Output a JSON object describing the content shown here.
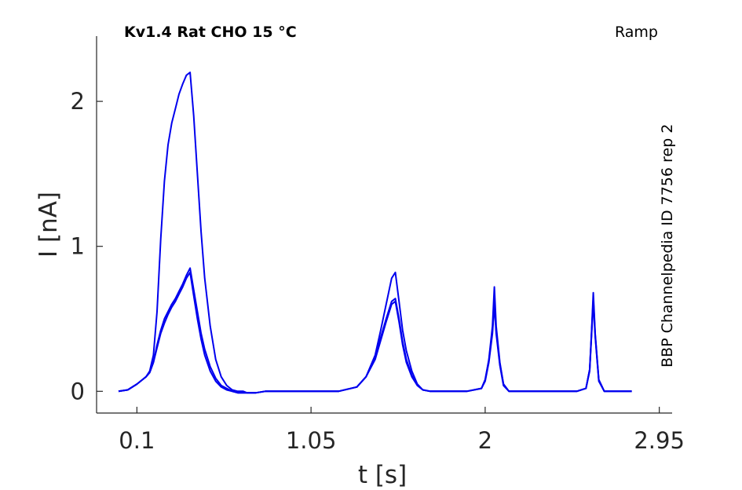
{
  "chart_data": {
    "type": "line",
    "title": "Kv1.4  Rat  CHO  15 °C",
    "protocol_label": "Ramp",
    "side_label": "BBP Channelpedia ID 7756 rep 2",
    "xlabel": "t [s]",
    "ylabel": "I [nA]",
    "x_tick_labels": [
      "0.1",
      "1.05",
      "2",
      "2.95"
    ],
    "x_tick_values": [
      0.1,
      1.05,
      2.0,
      2.95
    ],
    "y_tick_labels": [
      "0",
      "1",
      "2"
    ],
    "y_tick_values": [
      0,
      1,
      2
    ],
    "xlim": [
      -0.12,
      3.02
    ],
    "ylim": [
      -0.15,
      2.45
    ],
    "grid": false,
    "line_color": "#0000ee",
    "series": [
      {
        "x": [
          0.0,
          0.05,
          0.1,
          0.13,
          0.15,
          0.17,
          0.19,
          0.21,
          0.23,
          0.25,
          0.27,
          0.29,
          0.31,
          0.33,
          0.35,
          0.37,
          0.39,
          0.41,
          0.43,
          0.45,
          0.47,
          0.5,
          0.53,
          0.56,
          0.59,
          0.62,
          0.65,
          0.68,
          0.7,
          0.75,
          0.8,
          0.9,
          1.0,
          1.1,
          1.2,
          1.3,
          1.35,
          1.4,
          1.43,
          1.46,
          1.49,
          1.51,
          1.53,
          1.55,
          1.57,
          1.6,
          1.63,
          1.66,
          1.7,
          1.75,
          1.8,
          1.9,
          1.98,
          2.0,
          2.02,
          2.04,
          2.05,
          2.06,
          2.08,
          2.1,
          2.13,
          2.2,
          2.3,
          2.4,
          2.5,
          2.55,
          2.57,
          2.58,
          2.59,
          2.6,
          2.62,
          2.65,
          2.7,
          2.8
        ],
        "y": [
          0.0,
          0.01,
          0.05,
          0.08,
          0.1,
          0.14,
          0.25,
          0.55,
          1.05,
          1.45,
          1.7,
          1.85,
          1.95,
          2.05,
          2.12,
          2.18,
          2.2,
          1.9,
          1.5,
          1.1,
          0.78,
          0.45,
          0.22,
          0.1,
          0.04,
          0.01,
          0.0,
          0.0,
          -0.01,
          -0.01,
          0.0,
          0.0,
          0.0,
          0.0,
          0.0,
          0.03,
          0.1,
          0.25,
          0.42,
          0.6,
          0.78,
          0.82,
          0.62,
          0.42,
          0.28,
          0.14,
          0.05,
          0.01,
          0.0,
          0.0,
          0.0,
          0.0,
          0.02,
          0.08,
          0.22,
          0.45,
          0.72,
          0.45,
          0.2,
          0.05,
          0.0,
          0.0,
          0.0,
          0.0,
          0.0,
          0.02,
          0.15,
          0.4,
          0.68,
          0.4,
          0.08,
          0.0,
          0.0,
          0.0
        ]
      },
      {
        "x": [
          0.0,
          0.05,
          0.1,
          0.13,
          0.15,
          0.17,
          0.19,
          0.21,
          0.23,
          0.25,
          0.27,
          0.29,
          0.31,
          0.33,
          0.35,
          0.37,
          0.39,
          0.41,
          0.43,
          0.45,
          0.47,
          0.5,
          0.53,
          0.56,
          0.59,
          0.62,
          0.65,
          0.68,
          0.7,
          0.75,
          0.8,
          0.9,
          1.0,
          1.1,
          1.2,
          1.3,
          1.35,
          1.4,
          1.43,
          1.46,
          1.49,
          1.51,
          1.53,
          1.55,
          1.57,
          1.6,
          1.63,
          1.66,
          1.7,
          1.75,
          1.8,
          1.9,
          1.98,
          2.0,
          2.02,
          2.04,
          2.05,
          2.06,
          2.08,
          2.1,
          2.13,
          2.2,
          2.3,
          2.4,
          2.5,
          2.55,
          2.57,
          2.58,
          2.59,
          2.6,
          2.62,
          2.65,
          2.7,
          2.8
        ],
        "y": [
          0.0,
          0.01,
          0.05,
          0.08,
          0.1,
          0.13,
          0.2,
          0.3,
          0.4,
          0.47,
          0.53,
          0.58,
          0.62,
          0.67,
          0.72,
          0.78,
          0.82,
          0.66,
          0.5,
          0.36,
          0.25,
          0.14,
          0.07,
          0.03,
          0.01,
          0.0,
          -0.01,
          -0.01,
          -0.01,
          -0.01,
          0.0,
          0.0,
          0.0,
          0.0,
          0.0,
          0.03,
          0.1,
          0.22,
          0.35,
          0.48,
          0.6,
          0.62,
          0.48,
          0.32,
          0.2,
          0.1,
          0.04,
          0.01,
          0.0,
          0.0,
          0.0,
          0.0,
          0.02,
          0.07,
          0.2,
          0.4,
          0.6,
          0.4,
          0.18,
          0.04,
          0.0,
          0.0,
          0.0,
          0.0,
          0.0,
          0.02,
          0.14,
          0.38,
          0.62,
          0.38,
          0.07,
          0.0,
          0.0,
          0.0
        ]
      },
      {
        "x": [
          0.0,
          0.05,
          0.1,
          0.13,
          0.15,
          0.17,
          0.19,
          0.21,
          0.23,
          0.25,
          0.27,
          0.29,
          0.31,
          0.33,
          0.35,
          0.37,
          0.39,
          0.41,
          0.43,
          0.45,
          0.47,
          0.5,
          0.53,
          0.56,
          0.59,
          0.62,
          0.65,
          0.68,
          0.7,
          0.75,
          0.8,
          0.9,
          1.0,
          1.1,
          1.2,
          1.3,
          1.35,
          1.4,
          1.43,
          1.46,
          1.49,
          1.51,
          1.53,
          1.55,
          1.57,
          1.6,
          1.63,
          1.66,
          1.7,
          1.75,
          1.8,
          1.9,
          1.98,
          2.0,
          2.02,
          2.04,
          2.05,
          2.06,
          2.08,
          2.1,
          2.13,
          2.2,
          2.3,
          2.4,
          2.5,
          2.55,
          2.57,
          2.58,
          2.59,
          2.6,
          2.62,
          2.65,
          2.7,
          2.8
        ],
        "y": [
          0.0,
          0.01,
          0.05,
          0.08,
          0.1,
          0.13,
          0.2,
          0.32,
          0.42,
          0.5,
          0.55,
          0.6,
          0.64,
          0.69,
          0.74,
          0.8,
          0.85,
          0.7,
          0.55,
          0.4,
          0.29,
          0.17,
          0.09,
          0.04,
          0.02,
          0.0,
          -0.01,
          -0.01,
          -0.01,
          -0.01,
          0.0,
          0.0,
          0.0,
          0.0,
          0.0,
          0.03,
          0.1,
          0.23,
          0.37,
          0.5,
          0.62,
          0.64,
          0.5,
          0.34,
          0.22,
          0.11,
          0.04,
          0.01,
          0.0,
          0.0,
          0.0,
          0.0,
          0.02,
          0.08,
          0.21,
          0.42,
          0.62,
          0.42,
          0.19,
          0.05,
          0.0,
          0.0,
          0.0,
          0.0,
          0.0,
          0.02,
          0.15,
          0.39,
          0.64,
          0.39,
          0.08,
          0.0,
          0.0,
          0.0
        ]
      }
    ]
  }
}
